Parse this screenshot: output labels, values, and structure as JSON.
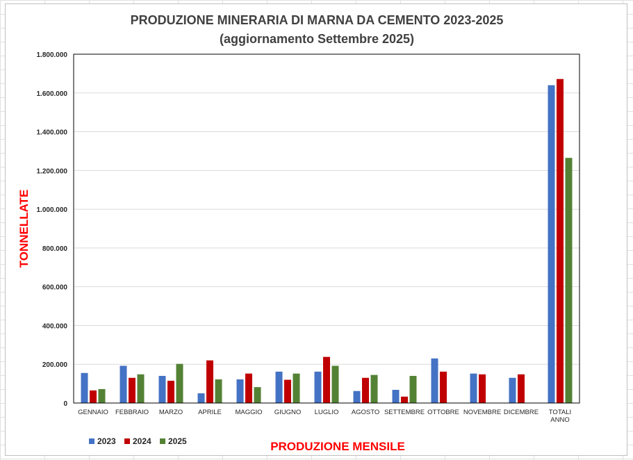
{
  "chart_data": {
    "type": "bar",
    "title": "PRODUZIONE MINERARIA DI MARNA DA CEMENTO 2023-2025",
    "subtitle": "(aggiornamento  Settembre 2025)",
    "xlabel": "PRODUZIONE MENSILE",
    "ylabel": "TONNELLATE",
    "ylim": [
      0,
      1800000
    ],
    "yticks": [
      0,
      200000,
      400000,
      600000,
      800000,
      1000000,
      1200000,
      1400000,
      1600000,
      1800000
    ],
    "ytick_labels": [
      "0",
      "200.000",
      "400.000",
      "600.000",
      "800.000",
      "1.000.000",
      "1.200.000",
      "1.400.000",
      "1.600.000",
      "1.800.000"
    ],
    "grid": true,
    "legend_position": "bottom-left",
    "categories": [
      "GENNAIO",
      "FEBBRAIO",
      "MARZO",
      "APRILE",
      "MAGGIO",
      "GIUGNO",
      "LUGLIO",
      "AGOSTO",
      "SETTEMBRE",
      "OTTOBRE",
      "NOVEMBRE",
      "DICEMBRE",
      "TOTALI ANNO"
    ],
    "series": [
      {
        "name": "2023",
        "color": "#4472c4",
        "values": [
          155000,
          192000,
          140000,
          50000,
          122000,
          162000,
          162000,
          62000,
          68000,
          230000,
          152000,
          130000,
          1640000
        ]
      },
      {
        "name": "2024",
        "color": "#c00000",
        "values": [
          65000,
          130000,
          115000,
          220000,
          152000,
          120000,
          238000,
          130000,
          33000,
          162000,
          148000,
          148000,
          1672000
        ]
      },
      {
        "name": "2025",
        "color": "#548235",
        "values": [
          72000,
          148000,
          202000,
          122000,
          82000,
          152000,
          192000,
          145000,
          140000,
          null,
          null,
          null,
          1265000
        ]
      }
    ]
  }
}
